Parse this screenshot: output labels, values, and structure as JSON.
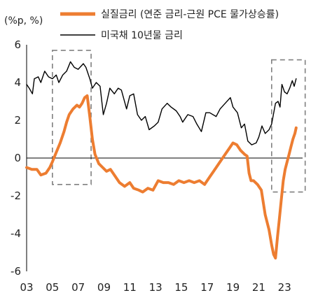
{
  "chart_data": {
    "type": "line",
    "unit_label": "(%p, %)",
    "x_ticks": [
      "03",
      "05",
      "07",
      "09",
      "11",
      "13",
      "15",
      "17",
      "19",
      "21",
      "23"
    ],
    "x_tick_years": [
      2003,
      2005,
      2007,
      2009,
      2011,
      2013,
      2015,
      2017,
      2019,
      2021,
      2023
    ],
    "xlim": [
      2003.0,
      2024.4
    ],
    "y_ticks": [
      "6",
      "4",
      "2",
      "0",
      "-2",
      "-4",
      "-6"
    ],
    "ylim": [
      -6,
      6
    ],
    "zero_line": true,
    "grid": false,
    "legend_position": "top",
    "colors": {
      "real_rate": "#ed7d31",
      "treasury_10y": "#000000",
      "highlight_box": "#808080"
    },
    "series": [
      {
        "name": "실질금리 (연준 금리-근원 PCE 물가상승률)",
        "key": "real_rate",
        "points": [
          [
            2003.0,
            -0.5
          ],
          [
            2003.4,
            -0.6
          ],
          [
            2003.8,
            -0.6
          ],
          [
            2004.1,
            -0.9
          ],
          [
            2004.5,
            -0.8
          ],
          [
            2004.8,
            -0.5
          ],
          [
            2005.0,
            -0.2
          ],
          [
            2005.3,
            0.3
          ],
          [
            2005.6,
            0.8
          ],
          [
            2005.9,
            1.4
          ],
          [
            2006.1,
            1.9
          ],
          [
            2006.3,
            2.3
          ],
          [
            2006.6,
            2.6
          ],
          [
            2006.9,
            2.8
          ],
          [
            2007.1,
            2.7
          ],
          [
            2007.3,
            2.9
          ],
          [
            2007.5,
            3.2
          ],
          [
            2007.7,
            3.3
          ],
          [
            2007.9,
            2.2
          ],
          [
            2008.1,
            1.0
          ],
          [
            2008.3,
            0.2
          ],
          [
            2008.6,
            -0.3
          ],
          [
            2008.9,
            -0.5
          ],
          [
            2009.2,
            -0.7
          ],
          [
            2009.5,
            -0.6
          ],
          [
            2009.8,
            -0.9
          ],
          [
            2010.2,
            -1.3
          ],
          [
            2010.6,
            -1.5
          ],
          [
            2011.0,
            -1.3
          ],
          [
            2011.3,
            -1.6
          ],
          [
            2011.7,
            -1.7
          ],
          [
            2012.0,
            -1.8
          ],
          [
            2012.4,
            -1.6
          ],
          [
            2012.8,
            -1.7
          ],
          [
            2013.2,
            -1.2
          ],
          [
            2013.6,
            -1.3
          ],
          [
            2014.0,
            -1.3
          ],
          [
            2014.4,
            -1.4
          ],
          [
            2014.8,
            -1.2
          ],
          [
            2015.2,
            -1.3
          ],
          [
            2015.6,
            -1.2
          ],
          [
            2016.0,
            -1.3
          ],
          [
            2016.4,
            -1.2
          ],
          [
            2016.8,
            -1.4
          ],
          [
            2017.2,
            -1.0
          ],
          [
            2017.5,
            -0.7
          ],
          [
            2017.9,
            -0.3
          ],
          [
            2018.3,
            0.1
          ],
          [
            2018.7,
            0.5
          ],
          [
            2019.0,
            0.8
          ],
          [
            2019.3,
            0.7
          ],
          [
            2019.6,
            0.4
          ],
          [
            2019.9,
            0.2
          ],
          [
            2020.1,
            0.1
          ],
          [
            2020.25,
            -0.8
          ],
          [
            2020.4,
            -1.2
          ],
          [
            2020.6,
            -1.2
          ],
          [
            2020.9,
            -1.4
          ],
          [
            2021.2,
            -1.7
          ],
          [
            2021.5,
            -3.0
          ],
          [
            2021.8,
            -3.8
          ],
          [
            2022.0,
            -4.6
          ],
          [
            2022.15,
            -5.1
          ],
          [
            2022.3,
            -5.3
          ],
          [
            2022.45,
            -4.2
          ],
          [
            2022.6,
            -3.2
          ],
          [
            2022.75,
            -2.2
          ],
          [
            2022.9,
            -1.2
          ],
          [
            2023.05,
            -0.6
          ],
          [
            2023.2,
            -0.2
          ],
          [
            2023.35,
            0.2
          ],
          [
            2023.5,
            0.6
          ],
          [
            2023.65,
            1.0
          ],
          [
            2023.8,
            1.3
          ],
          [
            2023.9,
            1.6
          ]
        ]
      },
      {
        "name": "미국채 10년물 금리",
        "key": "treasury_10y",
        "points": [
          [
            2003.0,
            3.9
          ],
          [
            2003.2,
            3.7
          ],
          [
            2003.45,
            3.4
          ],
          [
            2003.6,
            4.2
          ],
          [
            2003.9,
            4.3
          ],
          [
            2004.1,
            4.0
          ],
          [
            2004.4,
            4.6
          ],
          [
            2004.7,
            4.3
          ],
          [
            2005.0,
            4.2
          ],
          [
            2005.3,
            4.4
          ],
          [
            2005.5,
            4.0
          ],
          [
            2005.8,
            4.4
          ],
          [
            2006.1,
            4.6
          ],
          [
            2006.4,
            5.1
          ],
          [
            2006.7,
            4.8
          ],
          [
            2007.0,
            4.7
          ],
          [
            2007.4,
            5.0
          ],
          [
            2007.6,
            4.8
          ],
          [
            2007.9,
            4.2
          ],
          [
            2008.1,
            3.7
          ],
          [
            2008.4,
            4.0
          ],
          [
            2008.7,
            3.8
          ],
          [
            2008.95,
            2.3
          ],
          [
            2009.2,
            2.9
          ],
          [
            2009.45,
            3.7
          ],
          [
            2009.8,
            3.4
          ],
          [
            2010.1,
            3.7
          ],
          [
            2010.35,
            3.6
          ],
          [
            2010.75,
            2.6
          ],
          [
            2011.0,
            3.3
          ],
          [
            2011.3,
            3.4
          ],
          [
            2011.6,
            2.3
          ],
          [
            2011.9,
            2.0
          ],
          [
            2012.2,
            2.2
          ],
          [
            2012.5,
            1.5
          ],
          [
            2012.9,
            1.7
          ],
          [
            2013.2,
            1.9
          ],
          [
            2013.5,
            2.6
          ],
          [
            2013.9,
            2.9
          ],
          [
            2014.2,
            2.7
          ],
          [
            2014.6,
            2.5
          ],
          [
            2014.9,
            2.2
          ],
          [
            2015.1,
            1.9
          ],
          [
            2015.5,
            2.3
          ],
          [
            2015.9,
            2.2
          ],
          [
            2016.2,
            1.8
          ],
          [
            2016.55,
            1.4
          ],
          [
            2016.9,
            2.4
          ],
          [
            2017.2,
            2.4
          ],
          [
            2017.7,
            2.2
          ],
          [
            2018.0,
            2.6
          ],
          [
            2018.4,
            2.9
          ],
          [
            2018.8,
            3.2
          ],
          [
            2019.0,
            2.7
          ],
          [
            2019.35,
            2.4
          ],
          [
            2019.65,
            1.6
          ],
          [
            2019.9,
            1.8
          ],
          [
            2020.15,
            0.9
          ],
          [
            2020.45,
            0.7
          ],
          [
            2020.8,
            0.8
          ],
          [
            2021.0,
            1.1
          ],
          [
            2021.25,
            1.7
          ],
          [
            2021.5,
            1.3
          ],
          [
            2021.8,
            1.5
          ],
          [
            2022.0,
            1.8
          ],
          [
            2022.3,
            2.9
          ],
          [
            2022.5,
            3.0
          ],
          [
            2022.65,
            2.7
          ],
          [
            2022.8,
            3.9
          ],
          [
            2023.0,
            3.5
          ],
          [
            2023.2,
            3.4
          ],
          [
            2023.4,
            3.7
          ],
          [
            2023.6,
            4.1
          ],
          [
            2023.75,
            3.8
          ],
          [
            2023.9,
            4.2
          ]
        ]
      }
    ],
    "highlight_boxes": [
      {
        "x": [
          2005.0,
          2008.0
        ],
        "y": [
          -1.4,
          5.7
        ]
      },
      {
        "x": [
          2022.0,
          2024.6
        ],
        "y": [
          -1.8,
          5.2
        ]
      }
    ]
  }
}
